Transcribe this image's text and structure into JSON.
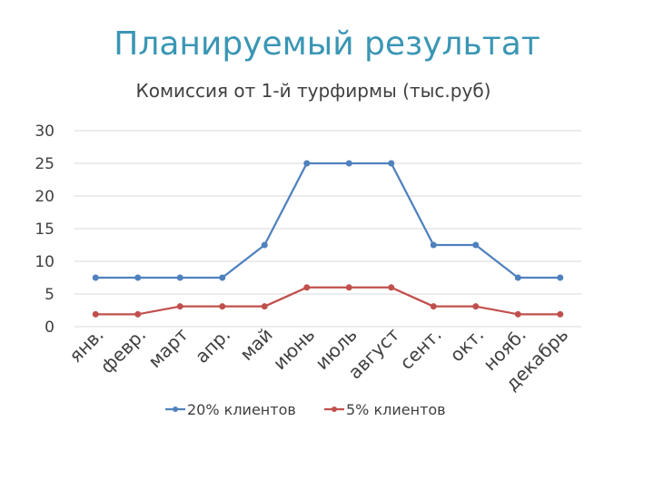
{
  "page": {
    "title": "Планируемый результат"
  },
  "chart_data": {
    "type": "line",
    "title": "Комиссия от 1-й турфирмы (тыс.руб)",
    "xlabel": "",
    "ylabel": "",
    "ylim": [
      0,
      30
    ],
    "yticks": [
      "0",
      "5",
      "10",
      "15",
      "20",
      "25",
      "30"
    ],
    "grid": true,
    "legend": "bottom",
    "categories": [
      "янв.",
      "февр.",
      "март",
      "апр.",
      "май",
      "июнь",
      "июль",
      "август",
      "сент.",
      "окт.",
      "нояб.",
      "декабрь"
    ],
    "series": [
      {
        "name": "20% клиентов",
        "color": "#4f81bd",
        "values": [
          7.5,
          7.5,
          7.5,
          7.5,
          12.5,
          25,
          25,
          25,
          12.5,
          12.5,
          7.5,
          7.5
        ]
      },
      {
        "name": "5% клиентов",
        "color": "#c0504d",
        "values": [
          1.9,
          1.9,
          3.1,
          3.1,
          3.1,
          6,
          6,
          6,
          3.1,
          3.1,
          1.9,
          1.9
        ]
      }
    ]
  }
}
